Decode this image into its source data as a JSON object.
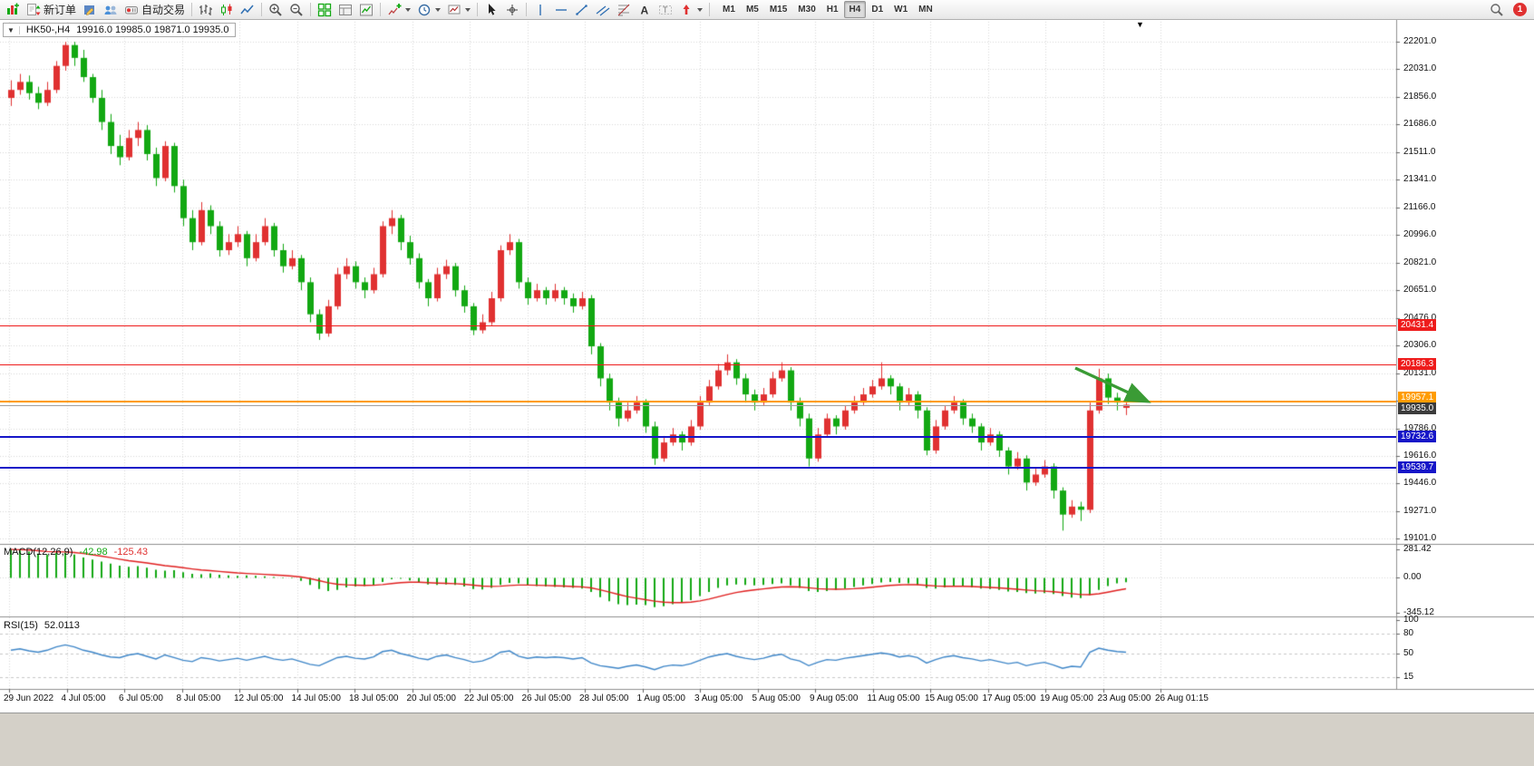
{
  "toolbar": {
    "new_order_label": "新订单",
    "auto_trading_label": "自动交易",
    "timeframes": [
      "M1",
      "M5",
      "M15",
      "M30",
      "H1",
      "H4",
      "D1",
      "W1",
      "MN"
    ],
    "active_timeframe": "H4",
    "notification_count": "1",
    "icon_buttons": [
      "new-chart",
      "new-order",
      "metaeditor",
      "community",
      "auto-trading",
      "bar-chart",
      "candlestick-chart",
      "line-chart",
      "zoom-in",
      "zoom-out",
      "tile-windows",
      "cascade-windows",
      "data-window",
      "add-indicator",
      "periods",
      "templates",
      "cursor",
      "crosshair",
      "vertical-line",
      "horizontal-line",
      "trendline",
      "equidistant-channel",
      "fibonacci-retracement",
      "text",
      "text-label",
      "arrow-objects",
      "search"
    ]
  },
  "chart_data": {
    "type": "candlestick",
    "title": "HK50-,H4",
    "symbol": "HK50-",
    "period": "H4",
    "info_ohlc": "19916.0 19985.0 19871.0 19935.0",
    "last_values": {
      "open": 19916.0,
      "high": 19985.0,
      "low": 19871.0,
      "close": 19935.0
    },
    "ylim": [
      19101.0,
      22201.0
    ],
    "bull_color": "#e03131",
    "bear_color": "#12a812",
    "shift_marker": "▼",
    "price_ticks": [
      "22201.0",
      "22031.0",
      "21856.0",
      "21686.0",
      "21511.0",
      "21341.0",
      "21166.0",
      "20996.0",
      "20821.0",
      "20651.0",
      "20476.0",
      "20306.0",
      "20131.0",
      "19961.0",
      "19786.0",
      "19616.0",
      "19446.0",
      "19271.0",
      "19101.0"
    ],
    "time_ticks": [
      "29 Jun 2022",
      "4 Jul 05:00",
      "6 Jul 05:00",
      "8 Jul 05:00",
      "12 Jul 05:00",
      "14 Jul 05:00",
      "18 Jul 05:00",
      "20 Jul 05:00",
      "22 Jul 05:00",
      "26 Jul 05:00",
      "28 Jul 05:00",
      "1 Aug 05:00",
      "3 Aug 05:00",
      "5 Aug 05:00",
      "9 Aug 05:00",
      "11 Aug 05:00",
      "15 Aug 05:00",
      "17 Aug 05:00",
      "19 Aug 05:00",
      "23 Aug 05:00",
      "26 Aug 01:15"
    ],
    "levels": [
      {
        "price": 20431.4,
        "label": "20431.4",
        "color": "#ee1c1c",
        "width": 1
      },
      {
        "price": 20186.3,
        "label": "20186.3",
        "color": "#ee1c1c",
        "width": 1
      },
      {
        "price": 19957.1,
        "label": "19957.1",
        "color": "#ff9c00",
        "width": 2,
        "label_dy": -4
      },
      {
        "price": 19935.0,
        "label": "19935.0",
        "color": "#3c3c3c",
        "line_color": "#a0a0a0",
        "width": 1,
        "label_dy": 4
      },
      {
        "price": 19732.6,
        "label": "19732.6",
        "color": "#1616c8",
        "width": 2
      },
      {
        "price": 19539.7,
        "label": "19539.7",
        "color": "#1616c8",
        "width": 2
      }
    ],
    "arrow": {
      "color": "#3a9b35"
    },
    "ohlc": [
      [
        21850,
        21960,
        21800,
        21900
      ],
      [
        21900,
        22000,
        21870,
        21950
      ],
      [
        21950,
        21990,
        21840,
        21880
      ],
      [
        21880,
        21920,
        21780,
        21820
      ],
      [
        21820,
        21950,
        21800,
        21900
      ],
      [
        21900,
        22080,
        21880,
        22050
      ],
      [
        22050,
        22200,
        22020,
        22180
      ],
      [
        22180,
        22200,
        22050,
        22100
      ],
      [
        22100,
        22150,
        21950,
        21980
      ],
      [
        21980,
        22000,
        21820,
        21850
      ],
      [
        21850,
        21900,
        21650,
        21700
      ],
      [
        21700,
        21750,
        21500,
        21550
      ],
      [
        21550,
        21620,
        21430,
        21480
      ],
      [
        21480,
        21650,
        21460,
        21600
      ],
      [
        21600,
        21700,
        21550,
        21650
      ],
      [
        21650,
        21680,
        21460,
        21500
      ],
      [
        21500,
        21540,
        21300,
        21350
      ],
      [
        21350,
        21580,
        21330,
        21550
      ],
      [
        21550,
        21570,
        21260,
        21300
      ],
      [
        21300,
        21340,
        21050,
        21100
      ],
      [
        21100,
        21150,
        20900,
        20950
      ],
      [
        20950,
        21200,
        20930,
        21150
      ],
      [
        21150,
        21180,
        21000,
        21050
      ],
      [
        21050,
        21080,
        20860,
        20900
      ],
      [
        20900,
        21000,
        20870,
        20950
      ],
      [
        20950,
        21050,
        20920,
        21000
      ],
      [
        21000,
        21020,
        20800,
        20850
      ],
      [
        20850,
        21000,
        20830,
        20950
      ],
      [
        20950,
        21100,
        20930,
        21050
      ],
      [
        21050,
        21070,
        20860,
        20900
      ],
      [
        20900,
        20940,
        20760,
        20800
      ],
      [
        20800,
        20900,
        20780,
        20850
      ],
      [
        20850,
        20870,
        20650,
        20700
      ],
      [
        20700,
        20730,
        20450,
        20500
      ],
      [
        20500,
        20530,
        20340,
        20380
      ],
      [
        20380,
        20590,
        20360,
        20550
      ],
      [
        20550,
        20790,
        20530,
        20750
      ],
      [
        20750,
        20850,
        20720,
        20800
      ],
      [
        20800,
        20830,
        20660,
        20700
      ],
      [
        20700,
        20730,
        20600,
        20650
      ],
      [
        20650,
        20790,
        20630,
        20750
      ],
      [
        20750,
        21080,
        20730,
        21050
      ],
      [
        21050,
        21150,
        21000,
        21100
      ],
      [
        21100,
        21120,
        20900,
        20950
      ],
      [
        20950,
        20990,
        20810,
        20850
      ],
      [
        20850,
        20880,
        20660,
        20700
      ],
      [
        20700,
        20720,
        20550,
        20600
      ],
      [
        20600,
        20790,
        20580,
        20750
      ],
      [
        20750,
        20840,
        20720,
        20800
      ],
      [
        20800,
        20820,
        20610,
        20650
      ],
      [
        20650,
        20680,
        20510,
        20550
      ],
      [
        20550,
        20570,
        20370,
        20400
      ],
      [
        20400,
        20500,
        20380,
        20450
      ],
      [
        20450,
        20640,
        20430,
        20600
      ],
      [
        20600,
        20930,
        20580,
        20900
      ],
      [
        20900,
        21000,
        20870,
        20950
      ],
      [
        20950,
        20970,
        20660,
        20700
      ],
      [
        20700,
        20730,
        20560,
        20600
      ],
      [
        20600,
        20690,
        20580,
        20650
      ],
      [
        20650,
        20670,
        20560,
        20600
      ],
      [
        20600,
        20690,
        20580,
        20650
      ],
      [
        20650,
        20670,
        20560,
        20600
      ],
      [
        20600,
        20630,
        20510,
        20550
      ],
      [
        20550,
        20640,
        20530,
        20600
      ],
      [
        20600,
        20620,
        20250,
        20300
      ],
      [
        20300,
        20320,
        20050,
        20100
      ],
      [
        20100,
        20130,
        19900,
        19950
      ],
      [
        19950,
        19980,
        19800,
        19850
      ],
      [
        19850,
        19950,
        19830,
        19900
      ],
      [
        19900,
        19990,
        19880,
        19950
      ],
      [
        19950,
        19970,
        19760,
        19800
      ],
      [
        19800,
        19830,
        19560,
        19600
      ],
      [
        19600,
        19740,
        19580,
        19700
      ],
      [
        19700,
        19790,
        19680,
        19750
      ],
      [
        19750,
        19770,
        19650,
        19700
      ],
      [
        19700,
        19840,
        19680,
        19800
      ],
      [
        19800,
        19990,
        19780,
        19950
      ],
      [
        19950,
        20090,
        19930,
        20050
      ],
      [
        20050,
        20190,
        20030,
        20150
      ],
      [
        20150,
        20250,
        20120,
        20200
      ],
      [
        20200,
        20220,
        20060,
        20100
      ],
      [
        20100,
        20130,
        19950,
        20000
      ],
      [
        20000,
        20030,
        19900,
        19950
      ],
      [
        19950,
        20040,
        19930,
        20000
      ],
      [
        20000,
        20140,
        19980,
        20100
      ],
      [
        20100,
        20200,
        20080,
        20150
      ],
      [
        20150,
        20170,
        19900,
        19950
      ],
      [
        19950,
        19980,
        19800,
        19850
      ],
      [
        19850,
        19880,
        19550,
        19600
      ],
      [
        19600,
        19790,
        19580,
        19750
      ],
      [
        19750,
        19880,
        19730,
        19850
      ],
      [
        19850,
        19870,
        19750,
        19800
      ],
      [
        19800,
        19930,
        19780,
        19900
      ],
      [
        19900,
        19990,
        19880,
        19950
      ],
      [
        19950,
        20040,
        19930,
        20000
      ],
      [
        20000,
        20090,
        19980,
        20050
      ],
      [
        20050,
        20200,
        20030,
        20100
      ],
      [
        20100,
        20120,
        20000,
        20050
      ],
      [
        20050,
        20070,
        19900,
        19950
      ],
      [
        19950,
        20040,
        19930,
        20000
      ],
      [
        20000,
        20020,
        19850,
        19900
      ],
      [
        19900,
        19920,
        19620,
        19650
      ],
      [
        19650,
        19840,
        19630,
        19800
      ],
      [
        19800,
        19930,
        19780,
        19900
      ],
      [
        19900,
        19990,
        19880,
        19950
      ],
      [
        19950,
        19970,
        19810,
        19850
      ],
      [
        19850,
        19880,
        19760,
        19800
      ],
      [
        19800,
        19820,
        19650,
        19700
      ],
      [
        19700,
        19790,
        19680,
        19750
      ],
      [
        19750,
        19770,
        19610,
        19650
      ],
      [
        19650,
        19670,
        19500,
        19550
      ],
      [
        19550,
        19640,
        19530,
        19600
      ],
      [
        19600,
        19620,
        19400,
        19450
      ],
      [
        19450,
        19540,
        19430,
        19500
      ],
      [
        19500,
        19590,
        19480,
        19550
      ],
      [
        19550,
        19570,
        19350,
        19400
      ],
      [
        19400,
        19420,
        19150,
        19250
      ],
      [
        19250,
        19340,
        19230,
        19300
      ],
      [
        19300,
        19330,
        19210,
        19280
      ],
      [
        19280,
        19950,
        19260,
        19900
      ],
      [
        19900,
        20160,
        19880,
        20100
      ],
      [
        20100,
        20130,
        19940,
        19980
      ],
      [
        19980,
        20010,
        19900,
        19950
      ],
      [
        19916,
        19985,
        19871,
        19935
      ]
    ],
    "indicators": {
      "macd": {
        "name": "MACD(12,26,9)",
        "value": "-42.98",
        "signal_value": "-125.43",
        "scale_ticks": [
          "281.42",
          "0.00",
          "-345.12"
        ],
        "range": [
          -345.12,
          281.42
        ],
        "histogram_color": "#12a812",
        "signal_color": "#e01f1f",
        "histogram": [
          280,
          270,
          260,
          240,
          230,
          245,
          250,
          230,
          200,
          180,
          160,
          140,
          120,
          110,
          115,
          100,
          80,
          70,
          75,
          55,
          40,
          35,
          45,
          30,
          25,
          20,
          25,
          20,
          15,
          8,
          3,
          -5,
          -30,
          -70,
          -110,
          -130,
          -120,
          -95,
          -85,
          -80,
          -70,
          -40,
          -15,
          -10,
          -25,
          -45,
          -65,
          -70,
          -65,
          -70,
          -85,
          -110,
          -115,
          -100,
          -70,
          -50,
          -55,
          -70,
          -80,
          -85,
          -90,
          -95,
          -100,
          -105,
          -140,
          -190,
          -230,
          -260,
          -270,
          -265,
          -270,
          -290,
          -280,
          -260,
          -245,
          -220,
          -180,
          -140,
          -100,
          -75,
          -65,
          -70,
          -75,
          -70,
          -60,
          -55,
          -75,
          -100,
          -130,
          -140,
          -130,
          -120,
          -105,
          -90,
          -75,
          -60,
          -45,
          -40,
          -50,
          -55,
          -70,
          -100,
          -105,
          -95,
          -85,
          -85,
          -95,
          -105,
          -110,
          -120,
          -135,
          -140,
          -150,
          -155,
          -150,
          -160,
          -180,
          -195,
          -200,
          -170,
          -120,
          -80,
          -55,
          -43
        ]
      },
      "rsi": {
        "name": "RSI(15)",
        "value": "52.0113",
        "scale_ticks": [
          "100",
          "80",
          "50",
          "15"
        ],
        "levels": [
          80,
          50,
          15
        ],
        "range": [
          0,
          100
        ],
        "line_color": "#3e86c8",
        "values": [
          55,
          57,
          54,
          52,
          55,
          60,
          63,
          60,
          55,
          52,
          48,
          45,
          44,
          48,
          50,
          46,
          42,
          48,
          44,
          40,
          38,
          44,
          42,
          39,
          41,
          43,
          40,
          43,
          46,
          42,
          40,
          42,
          38,
          34,
          32,
          38,
          44,
          46,
          43,
          42,
          45,
          53,
          55,
          50,
          47,
          43,
          41,
          46,
          48,
          44,
          41,
          37,
          39,
          44,
          52,
          54,
          46,
          43,
          45,
          44,
          45,
          44,
          42,
          44,
          36,
          32,
          30,
          28,
          31,
          33,
          30,
          26,
          31,
          33,
          32,
          35,
          40,
          45,
          48,
          50,
          46,
          43,
          41,
          43,
          47,
          49,
          42,
          39,
          32,
          37,
          41,
          40,
          43,
          45,
          47,
          49,
          51,
          49,
          45,
          47,
          44,
          36,
          41,
          45,
          47,
          44,
          42,
          39,
          41,
          38,
          35,
          37,
          32,
          35,
          37,
          33,
          28,
          31,
          30,
          52,
          58,
          55,
          53,
          52.0113
        ]
      }
    }
  }
}
